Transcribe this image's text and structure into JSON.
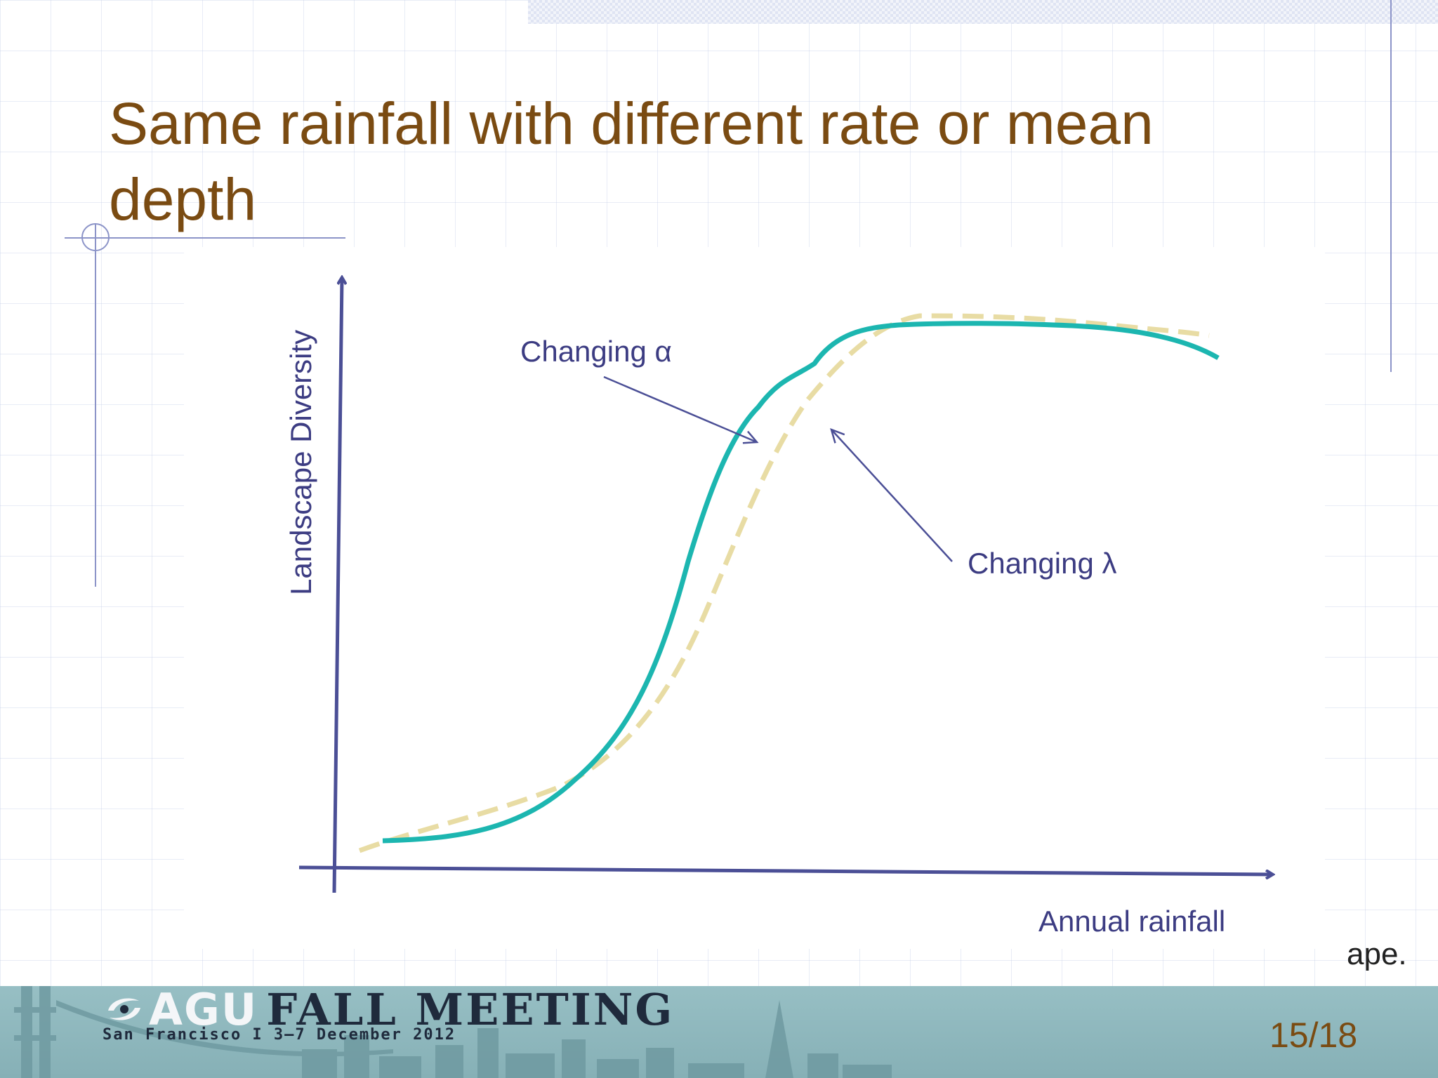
{
  "slide": {
    "title": "Same rainfall with different rate or mean depth",
    "truncated_text": "ape.",
    "page_number": "15/18"
  },
  "diagram": {
    "y_axis_label": "Landscape Diversity",
    "x_axis_label": "Annual rainfall",
    "annotations": {
      "alpha": "Changing α",
      "lambda": "Changing λ"
    },
    "colors": {
      "axis": "#4b4f96",
      "alpha_curve": "#1cb6b0",
      "lambda_curve": "#e8dca4",
      "label": "#3c3c82",
      "title": "#7a4b12"
    }
  },
  "footer": {
    "brand_agu": "AGU",
    "brand_meeting": "FALL MEETING",
    "brand_sub": "San Francisco  I  3–7 December 2012",
    "background": "#8fb8bd"
  }
}
